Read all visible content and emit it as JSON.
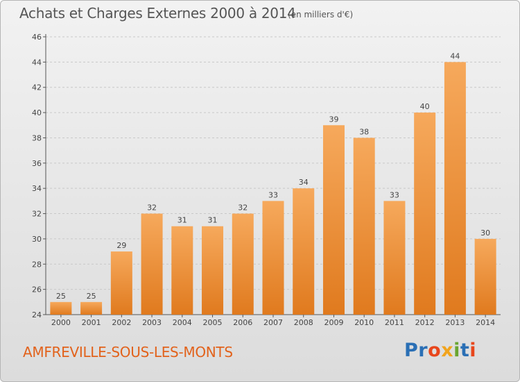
{
  "header": {
    "title": "Achats et Charges Externes 2000 à 2014",
    "subtitle": "(en milliers d'€)"
  },
  "footer": {
    "place": "AMFREVILLE-SOUS-LES-MONTS",
    "logo_letters": [
      "P",
      "r",
      "o",
      "x",
      "i",
      "t",
      "i"
    ],
    "logo_colors": [
      "#2a6fb5",
      "#2a6fb5",
      "#e8461c",
      "#f1a41d",
      "#6aa531",
      "#2a6fb5",
      "#e8461c"
    ]
  },
  "chart_data": {
    "type": "bar",
    "title": "Achats et Charges Externes 2000 à 2014",
    "subtitle": "(en milliers d'€)",
    "categories": [
      "2000",
      "2001",
      "2002",
      "2003",
      "2004",
      "2005",
      "2006",
      "2007",
      "2008",
      "2009",
      "2010",
      "2011",
      "2012",
      "2013",
      "2014"
    ],
    "values": [
      25,
      25,
      29,
      32,
      31,
      31,
      32,
      33,
      34,
      39,
      38,
      33,
      40,
      44,
      30
    ],
    "ylim": [
      24,
      46
    ],
    "yticks": [
      24,
      26,
      28,
      30,
      32,
      34,
      36,
      38,
      40,
      42,
      44,
      46
    ],
    "xlabel": "",
    "ylabel": "",
    "grid": true,
    "colors": {
      "bar_light": "#f6a95c",
      "bar_dark": "#e07a1e",
      "grid": "#c8c8c8",
      "axis": "#555555"
    }
  }
}
